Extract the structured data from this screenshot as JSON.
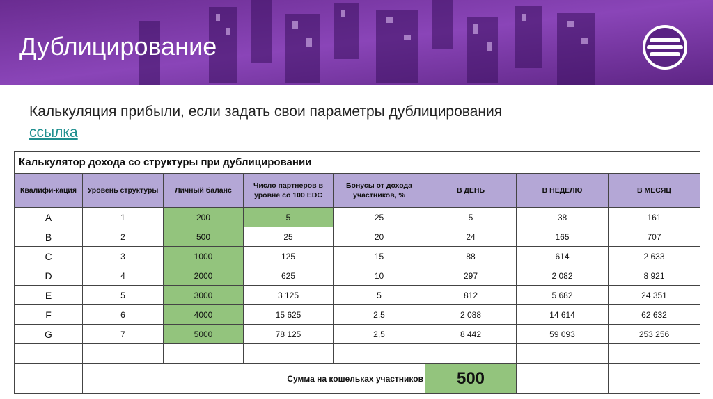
{
  "header": {
    "title": "Дублицирование"
  },
  "intro": {
    "text": "Калькуляция прибыли, если задать свои параметры дублицирования",
    "link": "ссылка"
  },
  "table": {
    "title": "Калькулятор дохода со структуры при дублицировании",
    "columns": [
      "Квалифи-кация",
      "Уровень структуры",
      "Личный баланс",
      "Число партнеров в уровне со 100 EDC",
      "Бонусы от дохода участников, %",
      "В ДЕНЬ",
      "В НЕДЕЛЮ",
      "В МЕСЯЦ"
    ],
    "rows": [
      [
        "A",
        "1",
        "200",
        "5",
        "25",
        "5",
        "38",
        "161"
      ],
      [
        "B",
        "2",
        "500",
        "25",
        "20",
        "24",
        "165",
        "707"
      ],
      [
        "C",
        "3",
        "1000",
        "125",
        "15",
        "88",
        "614",
        "2 633"
      ],
      [
        "D",
        "4",
        "2000",
        "625",
        "10",
        "297",
        "2 082",
        "8 921"
      ],
      [
        "E",
        "5",
        "3000",
        "3 125",
        "5",
        "812",
        "5 682",
        "24 351"
      ],
      [
        "F",
        "6",
        "4000",
        "15 625",
        "2,5",
        "2 088",
        "14 614",
        "62 632"
      ],
      [
        "G",
        "7",
        "5000",
        "78 125",
        "2,5",
        "8 442",
        "59 093",
        "253 256"
      ]
    ],
    "sum": {
      "label": "Сумма на кошельках участников",
      "value": "500"
    }
  }
}
